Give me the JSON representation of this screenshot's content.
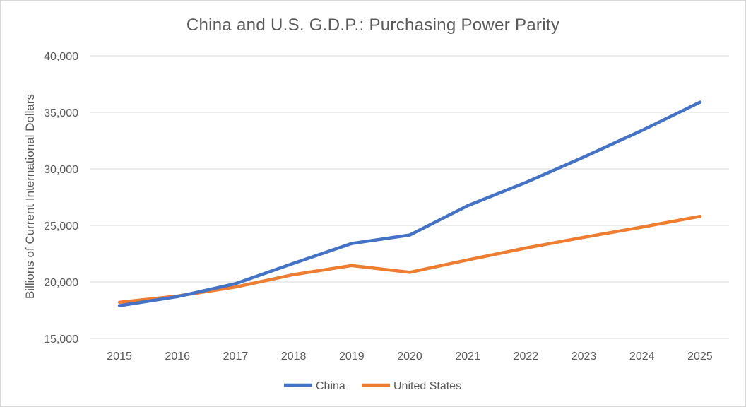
{
  "chart_data": {
    "type": "line",
    "title": "China and U.S. G.D.P.: Purchasing Power Parity",
    "xlabel": "",
    "ylabel": "Billions of Current International Dollars",
    "ylim": [
      15000,
      40000
    ],
    "yticks": [
      15000,
      20000,
      25000,
      30000,
      35000,
      40000
    ],
    "ytick_labels": [
      "15,000",
      "20,000",
      "25,000",
      "30,000",
      "35,000",
      "40,000"
    ],
    "categories": [
      "2015",
      "2016",
      "2017",
      "2018",
      "2019",
      "2020",
      "2021",
      "2022",
      "2023",
      "2024",
      "2025"
    ],
    "grid": "horizontal",
    "legend_position": "bottom",
    "series": [
      {
        "name": "China",
        "color": "#4472c4",
        "values": [
          17900,
          18700,
          19850,
          21650,
          23400,
          24150,
          26750,
          28800,
          31050,
          33400,
          35900
        ]
      },
      {
        "name": "United States",
        "color": "#ed7d31",
        "values": [
          18200,
          18750,
          19550,
          20650,
          21450,
          20850,
          21950,
          23000,
          23950,
          24850,
          25800
        ]
      }
    ]
  }
}
